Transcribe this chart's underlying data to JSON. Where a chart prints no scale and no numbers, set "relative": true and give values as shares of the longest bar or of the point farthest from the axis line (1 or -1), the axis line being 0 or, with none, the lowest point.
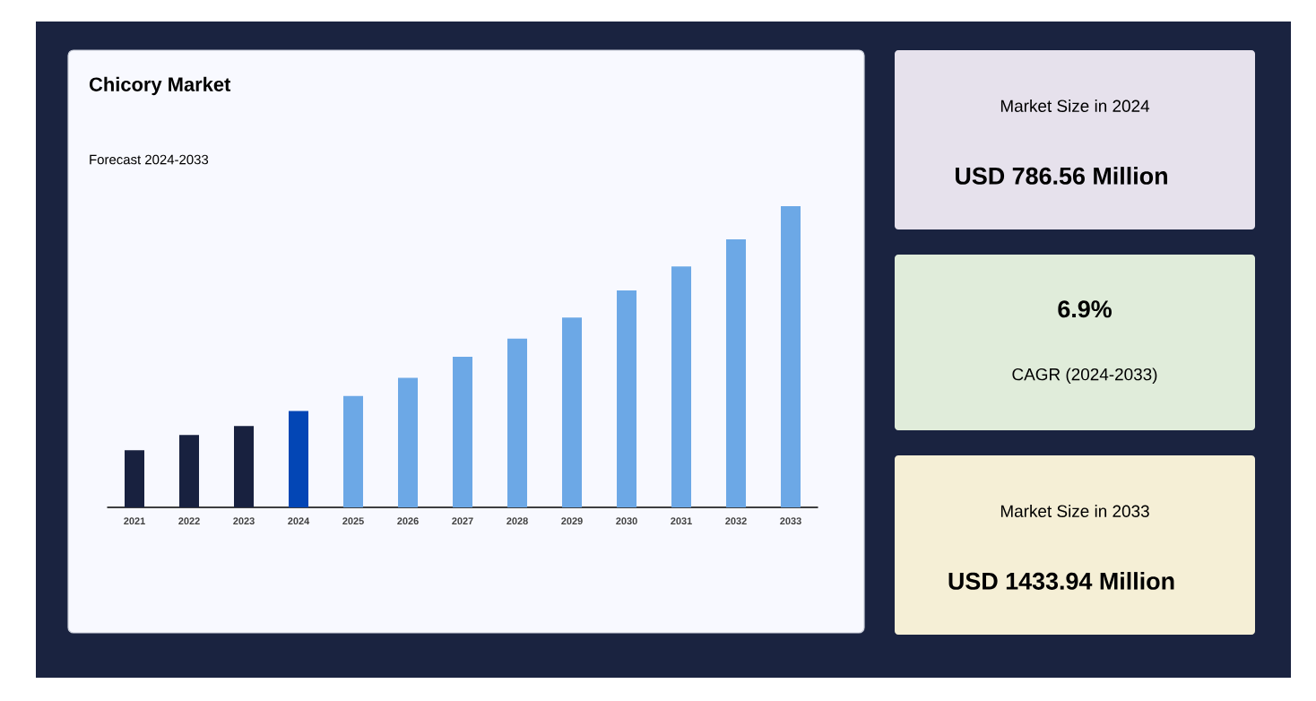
{
  "chart_data": [
    {
      "type": "bar",
      "title": "Chicory Market",
      "subtitle": "Forecast 2024-2033",
      "relative": true,
      "categories": [
        "2021",
        "2022",
        "2023",
        "2024",
        "2025",
        "2026",
        "2027",
        "2028",
        "2029",
        "2030",
        "2031",
        "2032",
        "2033"
      ],
      "values": [
        0.19,
        0.24,
        0.27,
        0.32,
        0.37,
        0.43,
        0.5,
        0.56,
        0.63,
        0.72,
        0.8,
        0.89,
        1
      ],
      "colors": [
        "#18213f",
        "#18213f",
        "#18213f",
        "#0346b5",
        "#6ca8e6",
        "#6ca8e6",
        "#6ca8e6",
        "#6ca8e6",
        "#6ca8e6",
        "#6ca8e6",
        "#6ca8e6",
        "#6ca8e6",
        "#6ca8e6"
      ]
    },
    {
      "type": "other",
      "title": "Market Size in 2024",
      "annotations": [
        "USD 786.56 Million"
      ]
    },
    {
      "type": "other",
      "annotations": [
        "6.9%",
        "CAGR (2024-2033)"
      ]
    },
    {
      "type": "other",
      "title": "Market Size in 2033",
      "annotations": [
        "USD 1433.94 Million"
      ]
    }
  ]
}
